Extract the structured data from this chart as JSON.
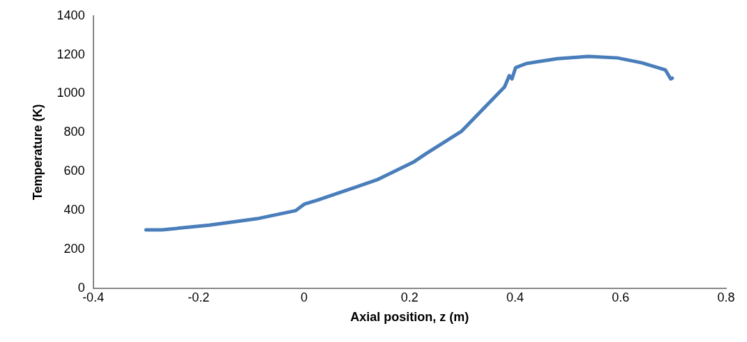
{
  "chart_data": {
    "type": "line",
    "xlabel": "Axial position, z (m)",
    "ylabel": "Temperature (K)",
    "xlim": [
      -0.4,
      0.8
    ],
    "xticks": [
      -0.4,
      -0.2,
      0,
      0.2,
      0.4,
      0.6,
      0.8
    ],
    "ylim": [
      0,
      1400
    ],
    "yticks": [
      0,
      200,
      400,
      600,
      800,
      1000,
      1200,
      1400
    ],
    "grid": false,
    "legend": false,
    "marker": "none",
    "line_style": "solid",
    "series": [
      {
        "color": "#4a7ebb",
        "x": [
          -0.3,
          -0.27,
          -0.18,
          -0.09,
          -0.016,
          0.0,
          0.025,
          0.093,
          0.138,
          0.207,
          0.23,
          0.298,
          0.371,
          0.38,
          0.389,
          0.394,
          0.401,
          0.421,
          0.48,
          0.539,
          0.594,
          0.64,
          0.685,
          0.695,
          0.698
        ],
        "values": [
          300,
          300,
          324,
          357,
          399,
          432,
          453,
          515,
          557,
          648,
          690,
          806,
          1010,
          1035,
          1093,
          1076,
          1134,
          1155,
          1180,
          1192,
          1184,
          1159,
          1122,
          1076,
          1080
        ]
      }
    ]
  }
}
